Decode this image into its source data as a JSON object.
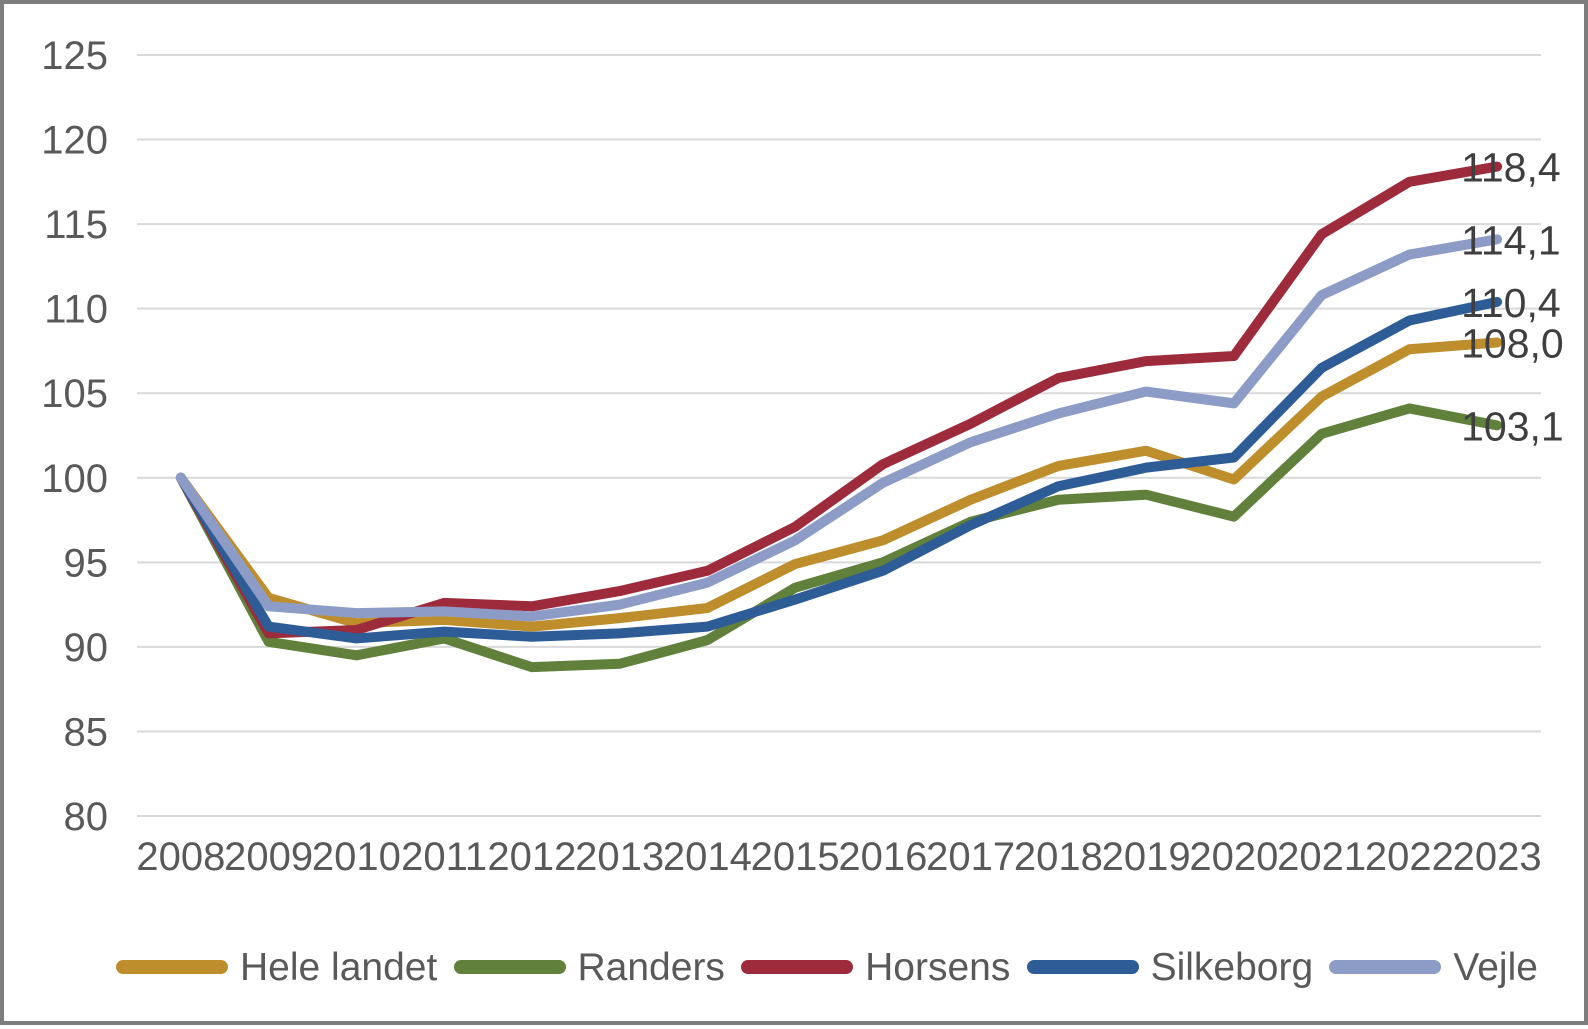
{
  "chart_data": {
    "type": "line",
    "title": "",
    "xlabel": "",
    "ylabel": "",
    "categories": [
      "2008",
      "2009",
      "2010",
      "2011",
      "2012",
      "2013",
      "2014",
      "2015",
      "2016",
      "2017",
      "2018",
      "2019",
      "2020",
      "2021",
      "2022",
      "2023"
    ],
    "series": [
      {
        "name": "Hele landet",
        "color": "#BF8E2C",
        "end_label": "108,0",
        "values": [
          100,
          92.9,
          91.4,
          91.6,
          91.2,
          91.7,
          92.3,
          94.9,
          96.3,
          98.7,
          100.7,
          101.6,
          99.9,
          104.8,
          107.6,
          108.0
        ]
      },
      {
        "name": "Randers",
        "color": "#60803C",
        "end_label": "103,1",
        "values": [
          100,
          90.3,
          89.5,
          90.5,
          88.8,
          89.0,
          90.4,
          93.5,
          95.0,
          97.4,
          98.7,
          99.0,
          97.7,
          102.6,
          104.1,
          103.1
        ]
      },
      {
        "name": "Horsens",
        "color": "#9E2B3B",
        "end_label": "118,4",
        "values": [
          100,
          90.8,
          91.0,
          92.6,
          92.4,
          93.3,
          94.5,
          97.1,
          100.8,
          103.2,
          105.9,
          106.9,
          107.2,
          114.4,
          117.5,
          118.4
        ]
      },
      {
        "name": "Silkeborg",
        "color": "#2E5C96",
        "end_label": "110,4",
        "values": [
          100,
          91.2,
          90.5,
          90.9,
          90.6,
          90.8,
          91.2,
          92.8,
          94.5,
          97.2,
          99.5,
          100.6,
          101.2,
          106.5,
          109.3,
          110.4
        ]
      },
      {
        "name": "Vejle",
        "color": "#8C9CC6",
        "end_label": "114,1",
        "values": [
          100,
          92.4,
          92.0,
          92.1,
          91.8,
          92.5,
          93.8,
          96.3,
          99.7,
          102.1,
          103.8,
          105.1,
          104.4,
          110.8,
          113.2,
          114.1
        ]
      }
    ],
    "y_axis": {
      "min": 80,
      "max": 125,
      "step": 5,
      "tick_labels": [
        "80",
        "85",
        "90",
        "95",
        "100",
        "105",
        "110",
        "115",
        "120",
        "125"
      ]
    },
    "grid": true,
    "legend_position": "bottom",
    "styles": {
      "grid_color": "#D9D9D9",
      "tick_text_color": "#595959",
      "end_label_color": "#3F3F3F",
      "border_color": "#7D7D7D",
      "background": "#FFFFFF",
      "line_width": 10
    }
  }
}
